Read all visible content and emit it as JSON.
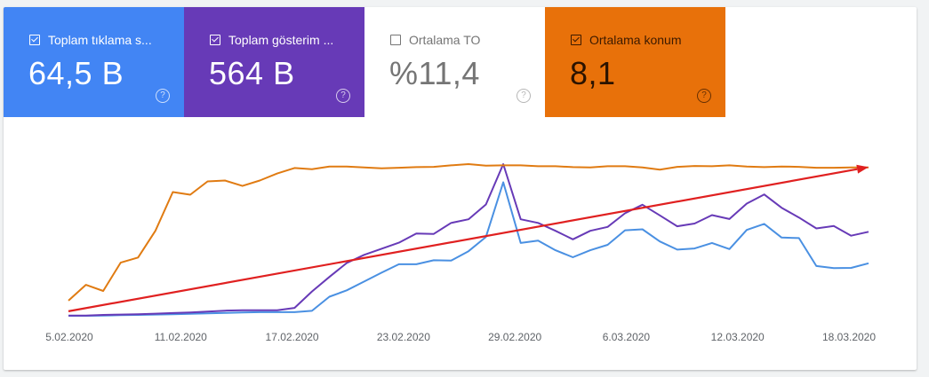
{
  "metrics": [
    {
      "label": "Toplam tıklama s...",
      "value": "64,5 B",
      "checked": true,
      "color": "#4285f4"
    },
    {
      "label": "Toplam gösterim ...",
      "value": "564 B",
      "checked": true,
      "color": "#673ab7"
    },
    {
      "label": "Ortalama TO",
      "value": "%11,4",
      "checked": false,
      "color": "#ffffff"
    },
    {
      "label": "Ortalama konum",
      "value": "8,1",
      "checked": true,
      "color": "#e8710a"
    }
  ],
  "help_glyph": "?",
  "chart_data": {
    "type": "line",
    "x_tick_labels": [
      "5.02.2020",
      "11.02.2020",
      "17.02.2020",
      "23.02.2020",
      "29.02.2020",
      "6.03.2020",
      "12.03.2020",
      "18.03.2020"
    ],
    "y_axis_visible": false,
    "grid": false,
    "series": [
      {
        "name": "Toplam tıklama s...",
        "color": "#4a90e2",
        "values": [
          0,
          0,
          0.2,
          0.4,
          0.6,
          0.8,
          1,
          1.3,
          1.6,
          1.9,
          2.2,
          2.4,
          2.4,
          2.4,
          3.3,
          12.6,
          16.8,
          22.6,
          28.4,
          34,
          34,
          36.6,
          36.4,
          42.6,
          52,
          88,
          48,
          49.6,
          43.2,
          38.6,
          43.2,
          46.8,
          56.4,
          57,
          49,
          43.6,
          44.4,
          48,
          44,
          56.6,
          60.6,
          51.6,
          51.2,
          32.8,
          31.4,
          31.6,
          34.6
        ]
      },
      {
        "name": "Toplam gösterim ...",
        "color": "#673ab7",
        "values": [
          0.2,
          0.2,
          0.6,
          0.8,
          1,
          1.4,
          1.8,
          2.2,
          2.8,
          3.4,
          3.6,
          3.6,
          3.6,
          5.2,
          16,
          25.6,
          34.8,
          40.2,
          44.2,
          48.2,
          54.2,
          54,
          61.2,
          63.6,
          73.4,
          100,
          63.6,
          61.2,
          56,
          50.4,
          56,
          58.6,
          67.6,
          73.2,
          66.2,
          59,
          60.8,
          66.4,
          63.8,
          74,
          80,
          71.2,
          64.8,
          57.6,
          59.2,
          52.8,
          55.4
        ]
      },
      {
        "name": "Ortalama konum",
        "color": "#e07b12",
        "values": [
          10,
          20.4,
          16.4,
          35,
          38.4,
          56,
          81.6,
          79.8,
          88.6,
          89.2,
          85.6,
          89.2,
          93.8,
          97.4,
          96.6,
          98.4,
          98.4,
          97.8,
          97.2,
          97.6,
          98,
          98.2,
          99.2,
          100,
          99,
          99.2,
          99.2,
          98.6,
          98.6,
          98,
          97.8,
          98.6,
          98.6,
          97.8,
          96.4,
          98.2,
          98.8,
          98.6,
          99.2,
          98.4,
          98,
          98.4,
          98.2,
          97.6,
          97.6,
          97.8,
          97.8
        ]
      }
    ],
    "annotation": {
      "type": "arrow",
      "color": "#e02020",
      "start": {
        "x_index": 0,
        "y": 3
      },
      "end": {
        "x_index": 46,
        "y": 98
      }
    }
  }
}
